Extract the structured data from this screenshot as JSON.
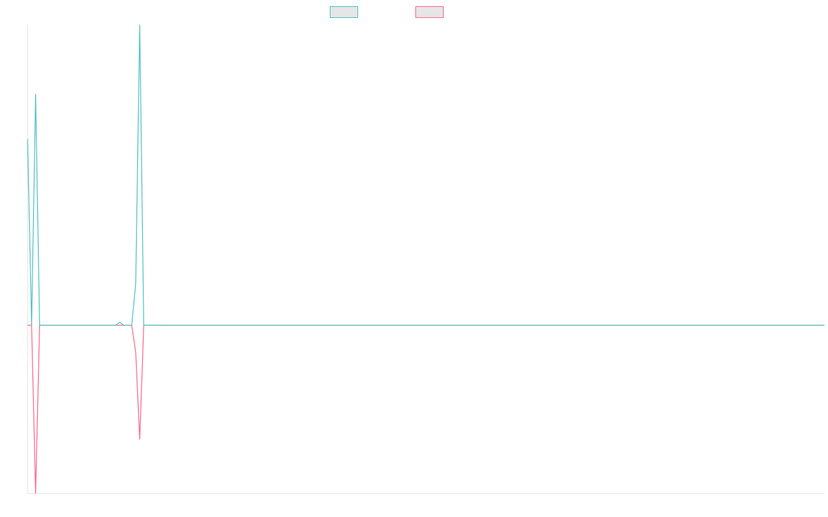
{
  "chart_data": {
    "type": "line",
    "x": [
      0,
      1,
      2,
      3,
      22,
      23,
      24,
      26,
      27,
      28,
      29,
      199
    ],
    "xlim": [
      0,
      199
    ],
    "ylim": [
      -56,
      100
    ],
    "grid": false,
    "legend": "top",
    "series": [
      {
        "color": "#4bc0c0",
        "values": [
          62,
          0,
          77,
          0,
          0,
          1,
          0,
          0,
          14,
          100,
          0,
          0
        ]
      },
      {
        "color": "#ff6384",
        "values": [
          0,
          0,
          -56,
          0,
          0,
          0,
          0,
          0,
          -9,
          -38,
          0,
          0
        ]
      }
    ]
  }
}
